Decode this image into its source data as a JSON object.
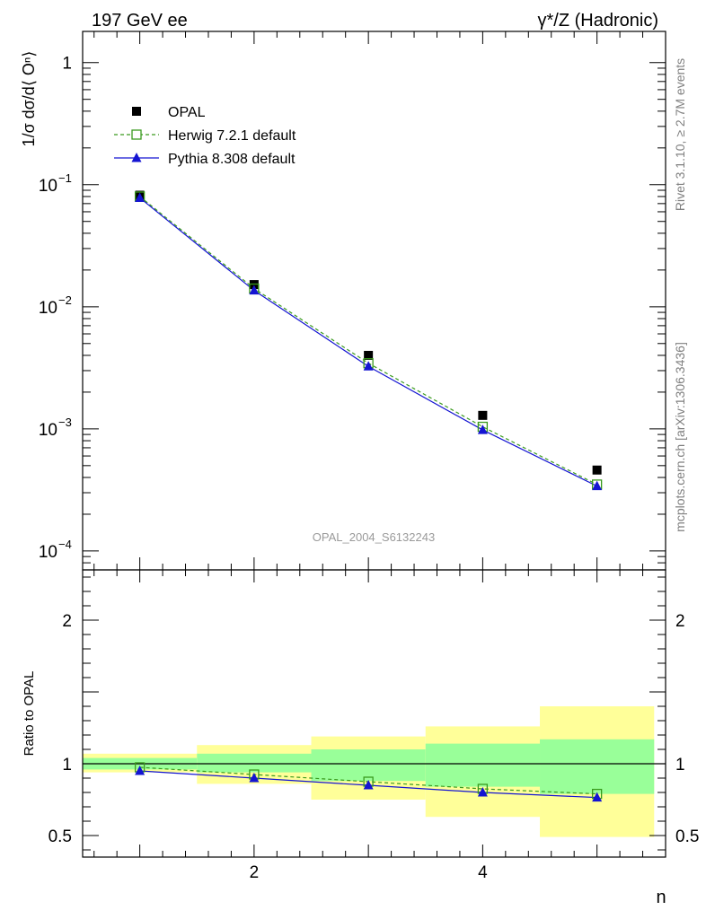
{
  "header": {
    "left_title": "197 GeV ee",
    "right_title": "γ*/Z (Hadronic)"
  },
  "side_labels": {
    "rivet": "Rivet 3.1.10, ≥ 2.7M events",
    "mcplots": "mcplots.cern.ch [arXiv:1306.3436]"
  },
  "watermark": "OPAL_2004_S6132243",
  "colors": {
    "opal": "#000000",
    "herwig": "#3a9a1e",
    "pythia": "#1414d2",
    "band_outer": "#ffff99",
    "band_inner": "#99ff99"
  },
  "chart_data": [
    {
      "type": "scatter",
      "panel": "main",
      "ylabel": "1/σ dσ/d⟨ Oⁿ⟩",
      "yscale": "log",
      "ylim": [
        7e-05,
        1.8
      ],
      "xlim": [
        0.5,
        5.6
      ],
      "yticks": [
        {
          "v": 1,
          "t": "1"
        },
        {
          "v": 0.1,
          "t": "10",
          "e": "−1"
        },
        {
          "v": 0.01,
          "t": "10",
          "e": "−2"
        },
        {
          "v": 0.001,
          "t": "10",
          "e": "−3"
        },
        {
          "v": 0.0001,
          "t": "10",
          "e": "−4"
        }
      ],
      "x": [
        1,
        2,
        3,
        4,
        5
      ],
      "series": [
        {
          "name": "OPAL",
          "values": [
            0.082,
            0.0152,
            0.004,
            0.00129,
            0.00046
          ]
        },
        {
          "name": "Herwig 7.2.1 default",
          "values": [
            0.08,
            0.0141,
            0.00345,
            0.00104,
            0.00035
          ]
        },
        {
          "name": "Pythia 8.308 default",
          "values": [
            0.078,
            0.0136,
            0.00325,
            0.00098,
            0.00034
          ]
        }
      ],
      "legend_position": "top-left"
    },
    {
      "type": "line",
      "panel": "ratio",
      "ylabel": "Ratio to OPAL",
      "ylim": [
        0.35,
        2.35
      ],
      "xlim": [
        0.5,
        5.6
      ],
      "yticks": [
        {
          "v": 2,
          "t": "2"
        },
        {
          "v": 1,
          "t": "1"
        },
        {
          "v": 0.5,
          "t": "0.5"
        }
      ],
      "xticks": [
        {
          "v": 2,
          "t": "2"
        },
        {
          "v": 4,
          "t": "4"
        }
      ],
      "xlabel": "n",
      "bins": [
        [
          0.5,
          1.5
        ],
        [
          1.5,
          2.5
        ],
        [
          2.5,
          3.5
        ],
        [
          3.5,
          4.5
        ],
        [
          4.5,
          5.5
        ]
      ],
      "band_outer": [
        [
          0.94,
          1.07
        ],
        [
          0.86,
          1.13
        ],
        [
          0.75,
          1.19
        ],
        [
          0.63,
          1.26
        ],
        [
          0.49,
          1.4
        ]
      ],
      "band_inner": [
        [
          0.96,
          1.04
        ],
        [
          0.94,
          1.07
        ],
        [
          0.88,
          1.1
        ],
        [
          0.84,
          1.14
        ],
        [
          0.79,
          1.17
        ]
      ],
      "x": [
        1,
        2,
        3,
        4,
        5
      ],
      "series": [
        {
          "name": "Herwig 7.2.1 default",
          "values": [
            0.975,
            0.925,
            0.875,
            0.825,
            0.79
          ]
        },
        {
          "name": "Pythia 8.308 default",
          "values": [
            0.95,
            0.9,
            0.85,
            0.8,
            0.765
          ]
        }
      ]
    }
  ]
}
